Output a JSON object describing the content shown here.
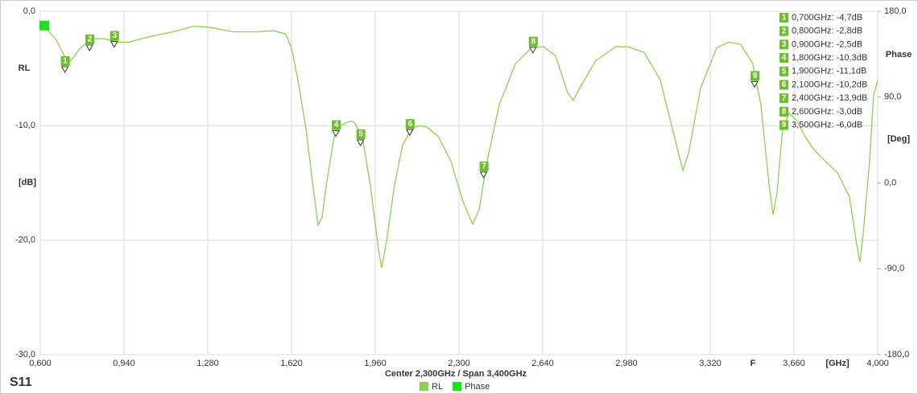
{
  "chart_data": {
    "type": "line",
    "title": "S11",
    "subtitle": "Center 2,300GHz / Span 3,400GHz",
    "ylabel": "RL",
    "yunit": "[dB]",
    "y2label": "Phase",
    "y2unit": "[Deg]",
    "xunit": "[GHz]",
    "x_annotation": "F",
    "xlim": [
      0.6,
      4.0
    ],
    "xticks": [
      {
        "value": 0.6,
        "label": "0,600"
      },
      {
        "value": 0.94,
        "label": "0,940"
      },
      {
        "value": 1.28,
        "label": "1,280"
      },
      {
        "value": 1.62,
        "label": "1,620"
      },
      {
        "value": 1.96,
        "label": "1,960"
      },
      {
        "value": 2.3,
        "label": "2,300"
      },
      {
        "value": 2.64,
        "label": "2,640"
      },
      {
        "value": 2.98,
        "label": "2,980"
      },
      {
        "value": 3.32,
        "label": "3,320"
      },
      {
        "value": 3.66,
        "label": "3,660"
      },
      {
        "value": 4.0,
        "label": "4,000"
      }
    ],
    "ylim": [
      -30,
      0
    ],
    "yticks": [
      {
        "value": 0,
        "label": "0,0"
      },
      {
        "value": -10,
        "label": "-10,0"
      },
      {
        "value": -20,
        "label": "-20,0"
      },
      {
        "value": -30,
        "label": "-30,0"
      }
    ],
    "y2lim": [
      -180,
      180
    ],
    "y2ticks": [
      {
        "value": 180,
        "label": "180,0"
      },
      {
        "value": 90,
        "label": "90,0"
      },
      {
        "value": 0,
        "label": "0,0"
      },
      {
        "value": -90,
        "label": "-90,0"
      },
      {
        "value": -180,
        "label": "-180,0"
      }
    ],
    "grid": true,
    "series": [
      {
        "name": "RL",
        "color": "#8cd150",
        "x": [
          0.616,
          0.665,
          0.714,
          0.763,
          0.812,
          0.862,
          0.911,
          0.96,
          1.009,
          1.09,
          1.139,
          1.221,
          1.287,
          1.385,
          1.483,
          1.548,
          1.597,
          1.62,
          1.646,
          1.679,
          1.711,
          1.728,
          1.744,
          1.761,
          1.793,
          1.826,
          1.859,
          1.875,
          1.908,
          1.94,
          1.973,
          1.986,
          2.006,
          2.038,
          2.071,
          2.104,
          2.136,
          2.169,
          2.218,
          2.267,
          2.316,
          2.355,
          2.382,
          2.414,
          2.463,
          2.529,
          2.594,
          2.643,
          2.692,
          2.741,
          2.764,
          2.79,
          2.856,
          2.937,
          2.986,
          3.052,
          3.117,
          3.183,
          3.209,
          3.232,
          3.281,
          3.346,
          3.395,
          3.444,
          3.493,
          3.526,
          3.559,
          3.575,
          3.591,
          3.614,
          3.64,
          3.673,
          3.706,
          3.738,
          3.787,
          3.836,
          3.885,
          3.918,
          3.928,
          3.941,
          3.967,
          3.983,
          4.0
        ],
        "values": [
          -1.3,
          -2.5,
          -4.6,
          -3.2,
          -2.4,
          -2.4,
          -2.7,
          -2.7,
          -2.4,
          -2.0,
          -1.8,
          -1.3,
          -1.4,
          -1.8,
          -1.8,
          -1.7,
          -2.0,
          -3.2,
          -6.0,
          -10.3,
          -15.9,
          -18.7,
          -18.0,
          -15.2,
          -11.0,
          -9.9,
          -9.6,
          -9.7,
          -11.0,
          -15.2,
          -20.8,
          -22.4,
          -20.1,
          -15.2,
          -11.7,
          -10.4,
          -10.0,
          -10.1,
          -11.0,
          -13.1,
          -16.6,
          -18.6,
          -17.3,
          -13.1,
          -8.2,
          -4.6,
          -3.2,
          -3.1,
          -3.9,
          -7.1,
          -7.8,
          -6.7,
          -4.3,
          -3.1,
          -3.1,
          -3.6,
          -6.0,
          -11.7,
          -13.9,
          -12.4,
          -6.7,
          -3.2,
          -2.7,
          -2.9,
          -4.6,
          -8.2,
          -15.2,
          -17.8,
          -15.9,
          -10.3,
          -8.9,
          -9.6,
          -11.0,
          -12.0,
          -13.1,
          -14.1,
          -16.2,
          -20.8,
          -21.9,
          -19.4,
          -13.1,
          -7.4,
          -6.0
        ]
      },
      {
        "name": "Phase",
        "color": "#1ee01e",
        "axis": "y2",
        "x": [
          0.6
        ],
        "values": [
          165
        ]
      }
    ],
    "markers": [
      {
        "id": "1",
        "label": "0,700GHz: -4,7dB",
        "x": 0.7,
        "value": -4.7
      },
      {
        "id": "2",
        "label": "0,800GHz: -2,8dB",
        "x": 0.8,
        "value": -2.8
      },
      {
        "id": "3",
        "label": "0,900GHz: -2,5dB",
        "x": 0.9,
        "value": -2.5
      },
      {
        "id": "4",
        "label": "1,800GHz: -10,3dB",
        "x": 1.8,
        "value": -10.3
      },
      {
        "id": "5",
        "label": "1,900GHz: -11,1dB",
        "x": 1.9,
        "value": -11.1
      },
      {
        "id": "6",
        "label": "2,100GHz: -10,2dB",
        "x": 2.1,
        "value": -10.2
      },
      {
        "id": "7",
        "label": "2,400GHz: -13,9dB",
        "x": 2.4,
        "value": -13.9
      },
      {
        "id": "8",
        "label": "2,600GHz: -3,0dB",
        "x": 2.6,
        "value": -3.0
      },
      {
        "id": "9",
        "label": "3,500GHz: -6,0dB",
        "x": 3.5,
        "value": -6.0
      }
    ]
  }
}
